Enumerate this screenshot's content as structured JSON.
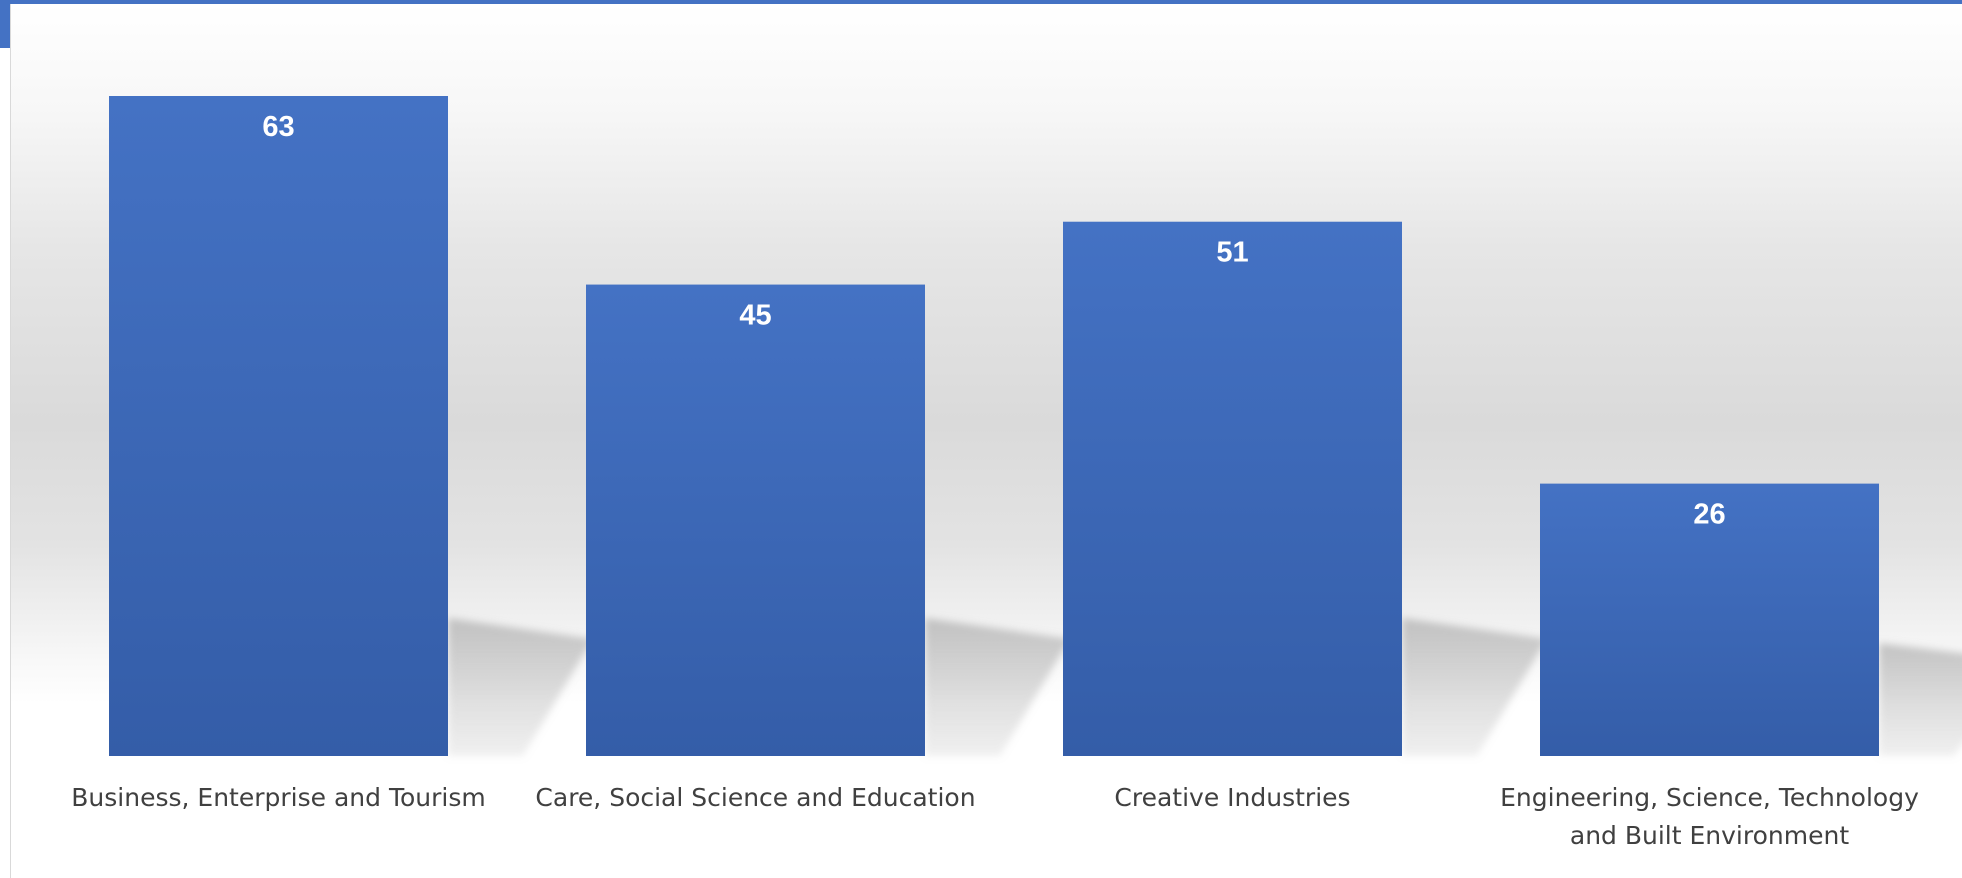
{
  "chart_data": {
    "type": "bar",
    "title": "",
    "xlabel": "",
    "ylabel": "",
    "categories": [
      "Business, Enterprise and Tourism",
      "Care, Social Science and Education",
      "Creative Industries",
      "Engineering, Science, Technology and Built Environment"
    ],
    "category_lines": [
      [
        "Business, Enterprise and Tourism"
      ],
      [
        "Care, Social Science and Education"
      ],
      [
        "Creative Industries"
      ],
      [
        "Engineering, Science, Technology",
        "and Built Environment"
      ]
    ],
    "values": [
      63,
      45,
      51,
      26
    ],
    "ylim": [
      0,
      63
    ],
    "grid": false,
    "legend": "none",
    "data_labels": true,
    "colors": {
      "bar_top": "#4472c4",
      "bar_bottom": "#345da8",
      "data_label": "#ffffff",
      "category_label": "#404040",
      "accent": "#4472c4"
    }
  }
}
